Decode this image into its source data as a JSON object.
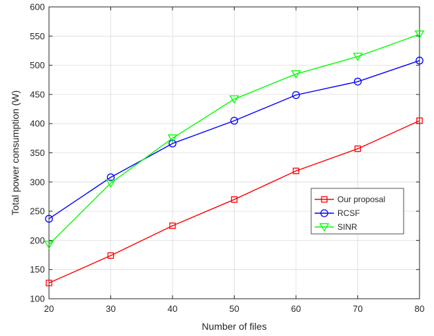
{
  "chart_data": {
    "type": "line",
    "xlabel": "Number of files",
    "ylabel": "Total power consumption (W)",
    "x": [
      20,
      30,
      40,
      50,
      60,
      70,
      80
    ],
    "xlim": [
      20,
      80
    ],
    "ylim": [
      100,
      600
    ],
    "xticks": [
      20,
      30,
      40,
      50,
      60,
      70,
      80
    ],
    "yticks": [
      100,
      150,
      200,
      250,
      300,
      350,
      400,
      450,
      500,
      550,
      600
    ],
    "grid": true,
    "legend_position": "lower-right",
    "series": [
      {
        "name": "Our proposal",
        "color": "#ff0000",
        "marker": "square",
        "values": [
          127,
          174,
          225,
          270,
          319,
          357,
          405
        ]
      },
      {
        "name": "RCSF",
        "color": "#0000ff",
        "marker": "circle",
        "values": [
          237,
          308,
          366,
          405,
          449,
          472,
          508
        ]
      },
      {
        "name": "SINR",
        "color": "#00ff00",
        "marker": "triangle-down",
        "values": [
          193,
          298,
          375,
          442,
          485,
          515,
          553
        ]
      }
    ]
  }
}
